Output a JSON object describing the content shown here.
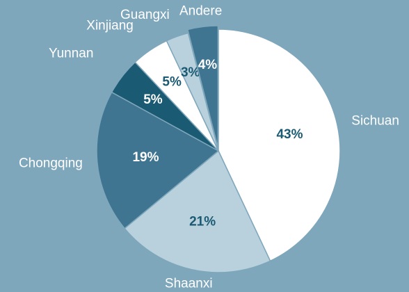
{
  "chart_data": {
    "type": "pie",
    "categories": [
      "Sichuan",
      "Shaanxi",
      "Chongqing",
      "Yunnan",
      "Xinjiang",
      "Guangxi",
      "Andere"
    ],
    "values": [
      43,
      21,
      19,
      5,
      5,
      3,
      4
    ],
    "value_labels": [
      "43%",
      "21%",
      "19%",
      "5%",
      "5%",
      "3%",
      "4%"
    ],
    "colors": [
      "#ffffff",
      "#b9d0dd",
      "#3f7591",
      "#1a5a72",
      "#ffffff",
      "#b9d0dd",
      "#3f7591"
    ]
  }
}
